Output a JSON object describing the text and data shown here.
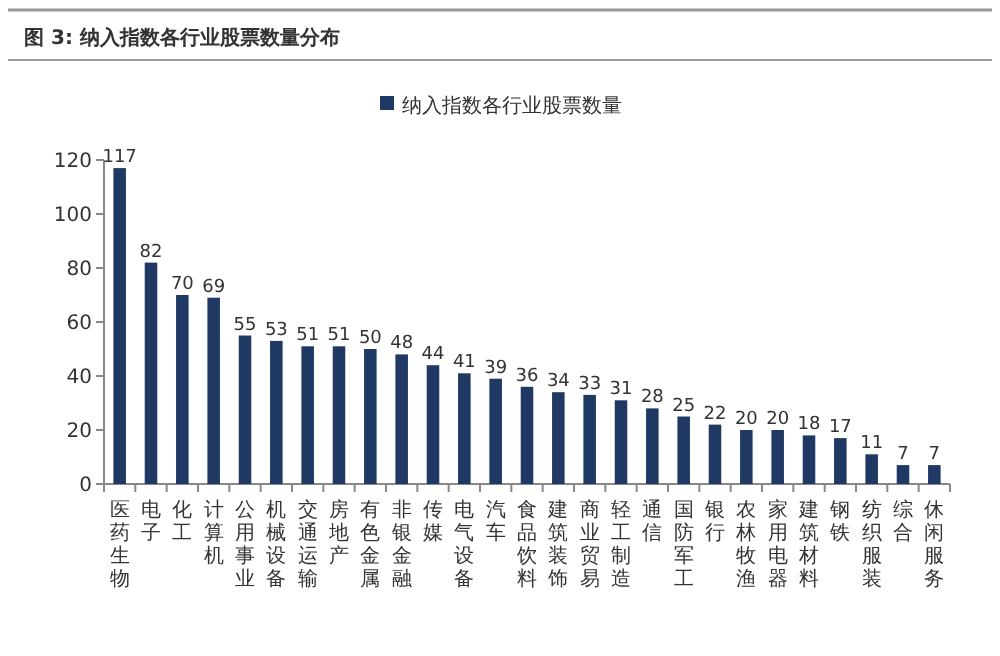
{
  "chart_data": {
    "type": "bar",
    "title": "图 3: 纳入指数各行业股票数量分布",
    "categories": [
      "医药生物",
      "电子",
      "化工",
      "计算机",
      "公用事业",
      "机械设备",
      "交通运输",
      "房地产",
      "有色金属",
      "非银金融",
      "传媒",
      "电气设备",
      "汽车",
      "食品饮料",
      "建筑装饰",
      "商业贸易",
      "轻工制造",
      "通信",
      "国防军工",
      "银行",
      "农林牧渔",
      "家用电器",
      "建筑材料",
      "钢铁",
      "纺织服装",
      "综合",
      "休闲服务"
    ],
    "series": [
      {
        "name": "纳入指数各行业股票数量",
        "color": "#1f3864",
        "values": [
          117,
          82,
          70,
          69,
          55,
          53,
          51,
          51,
          50,
          48,
          44,
          41,
          39,
          36,
          34,
          33,
          31,
          28,
          25,
          22,
          20,
          20,
          18,
          17,
          11,
          7,
          7
        ]
      }
    ],
    "ylim": [
      0,
      120
    ],
    "yticks": [
      0,
      20,
      40,
      60,
      80,
      100,
      120
    ],
    "data_labels": true,
    "legend": "top",
    "grid": false
  }
}
